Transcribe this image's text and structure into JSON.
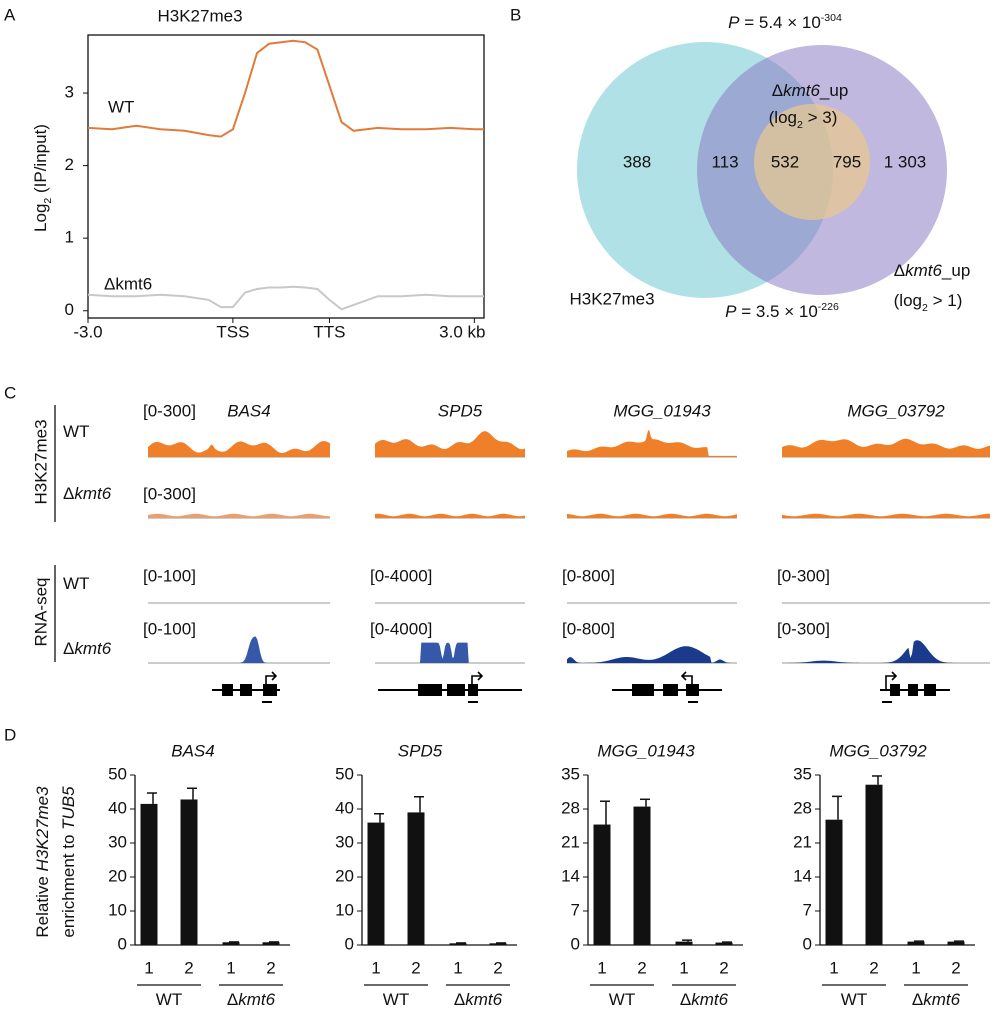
{
  "panels": [
    "A",
    "B",
    "C",
    "D"
  ],
  "chart_data": [
    {
      "type": "line",
      "title": "H3K27me3",
      "ylabel": [
        "Log",
        "2",
        " (IP/input)"
      ],
      "x": [
        -3,
        -2.5,
        -2,
        -1.5,
        -1,
        -0.5,
        -0.25,
        0,
        0.25,
        0.5,
        0.75,
        1,
        1.25,
        1.5,
        1.75,
        2,
        2.25,
        2.5,
        3,
        3.5,
        4,
        4.5,
        5,
        5.2
      ],
      "xlim": [
        -3,
        5.2
      ],
      "xticks": [
        {
          "value": -3,
          "label": "-3.0"
        },
        {
          "value": 0,
          "label": "TSS"
        },
        {
          "value": 2,
          "label": "TTS"
        },
        {
          "value": 5,
          "label": "3.0 kb"
        }
      ],
      "ylim": [
        -0.1,
        3.8
      ],
      "yticks": [
        0,
        1,
        2,
        3
      ],
      "series": [
        {
          "name": "WT",
          "color": "#e07b39",
          "values": [
            2.52,
            2.5,
            2.55,
            2.5,
            2.48,
            2.42,
            2.4,
            2.5,
            3.0,
            3.55,
            3.68,
            3.7,
            3.72,
            3.7,
            3.6,
            3.1,
            2.6,
            2.48,
            2.52,
            2.5,
            2.5,
            2.52,
            2.5,
            2.5
          ]
        },
        {
          "name": "Δkmt6",
          "color": "#c8c8c8",
          "values": [
            0.22,
            0.2,
            0.2,
            0.22,
            0.2,
            0.15,
            0.05,
            0.05,
            0.25,
            0.3,
            0.32,
            0.32,
            0.33,
            0.32,
            0.3,
            0.15,
            0.02,
            0.08,
            0.2,
            0.2,
            0.22,
            0.2,
            0.2,
            0.2
          ]
        }
      ]
    },
    {
      "type": "bar",
      "title": "BAS4",
      "ylabel": [
        [
          "Relative ",
          "H3K27me3"
        ],
        [
          "enrichment to ",
          "TUB5"
        ]
      ],
      "categories": [
        "1",
        "2",
        "1",
        "2"
      ],
      "groups": [
        [
          "WT"
        ],
        [
          "Δ",
          "kmt6"
        ]
      ],
      "values": [
        41.5,
        42.8,
        0.8,
        0.8
      ],
      "errors": [
        3.2,
        3.3,
        0.1,
        0.1
      ],
      "color": "#111111",
      "ylim": [
        0,
        50
      ],
      "yticks": [
        0,
        10,
        20,
        30,
        40,
        50
      ]
    },
    {
      "type": "bar",
      "title": "SPD5",
      "categories": [
        "1",
        "2",
        "1",
        "2"
      ],
      "groups": [
        [
          "WT"
        ],
        [
          "Δ",
          "kmt6"
        ]
      ],
      "values": [
        36,
        39,
        0.5,
        0.5
      ],
      "errors": [
        2.6,
        4.6,
        0.1,
        0.1
      ],
      "color": "#111111",
      "ylim": [
        0,
        50
      ],
      "yticks": [
        0,
        10,
        20,
        30,
        40,
        50
      ]
    },
    {
      "type": "bar",
      "title": "MGG_01943",
      "categories": [
        "1",
        "2",
        "1",
        "2"
      ],
      "groups": [
        [
          "WT"
        ],
        [
          "Δ",
          "kmt6"
        ]
      ],
      "values": [
        24.8,
        28.5,
        0.7,
        0.5
      ],
      "errors": [
        4.8,
        1.5,
        0.3,
        0.1
      ],
      "color": "#111111",
      "ylim": [
        0,
        35
      ],
      "yticks": [
        0,
        7,
        14,
        21,
        28,
        35
      ]
    },
    {
      "type": "bar",
      "title": "MGG_03792",
      "categories": [
        "1",
        "2",
        "1",
        "2"
      ],
      "groups": [
        [
          "WT"
        ],
        [
          "Δ",
          "kmt6"
        ]
      ],
      "values": [
        25.8,
        33,
        0.7,
        0.7
      ],
      "errors": [
        4.8,
        1.8,
        0.1,
        0.1
      ],
      "color": "#111111",
      "ylim": [
        0,
        35
      ],
      "yticks": [
        0,
        7,
        14,
        21,
        28,
        35
      ]
    }
  ],
  "venn": {
    "p_top": [
      "P",
      " = 5.4 × 10",
      "-304"
    ],
    "p_bottom": [
      "P",
      " = 3.5 × 10",
      "-226"
    ],
    "counts": [
      388,
      113,
      532,
      795,
      {
        "value": 1303,
        "label": "1 303"
      }
    ],
    "set_a": "H3K27me3",
    "set_b": [
      [
        "Δ",
        "kmt6",
        "_up"
      ],
      [
        "(log",
        "2",
        " > 3)"
      ]
    ],
    "set_c": [
      [
        "Δ",
        "kmt6",
        "_up"
      ],
      [
        "(log",
        "2",
        " > 1)"
      ]
    ]
  },
  "tracks": {
    "groups": [
      "H3K27me3",
      "RNA-seq"
    ],
    "rows": [
      [
        "WT"
      ],
      [
        "Δ",
        "kmt6"
      ],
      [
        "WT"
      ],
      [
        "Δ",
        "kmt6"
      ]
    ],
    "genes": [
      {
        "name": "BAS4",
        "chip_scale": [
          "[0-300]",
          "[0-300]"
        ],
        "rna_scale": [
          "[0-100]",
          "[0-100]"
        ]
      },
      {
        "name": "SPD5",
        "rna_scale": [
          "[0-4000]",
          "[0-4000]"
        ]
      },
      {
        "name": "MGG_01943",
        "rna_scale": [
          "[0-800]",
          "[0-800]"
        ]
      },
      {
        "name": "MGG_03792",
        "rna_scale": [
          "[0-300]",
          "[0-300]"
        ]
      }
    ]
  }
}
